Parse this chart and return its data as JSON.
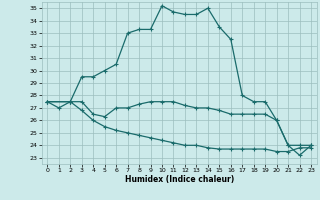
{
  "xlabel": "Humidex (Indice chaleur)",
  "bg_color": "#cceaea",
  "grid_color": "#9cbebe",
  "line_color": "#1a6b6b",
  "xlim": [
    -0.5,
    23.5
  ],
  "ylim": [
    22.5,
    35.5
  ],
  "yticks": [
    23,
    24,
    25,
    26,
    27,
    28,
    29,
    30,
    31,
    32,
    33,
    34,
    35
  ],
  "xticks": [
    0,
    1,
    2,
    3,
    4,
    5,
    6,
    7,
    8,
    9,
    10,
    11,
    12,
    13,
    14,
    15,
    16,
    17,
    18,
    19,
    20,
    21,
    22,
    23
  ],
  "line1_x": [
    0,
    1,
    2,
    3,
    4,
    5,
    6,
    7,
    8,
    9,
    10,
    11,
    12,
    13,
    14,
    15,
    16,
    17,
    18,
    19,
    20,
    21,
    22,
    23
  ],
  "line1_y": [
    27.5,
    27.0,
    27.5,
    29.5,
    29.5,
    30.0,
    30.5,
    33.0,
    33.3,
    33.3,
    35.2,
    34.7,
    34.5,
    34.5,
    35.0,
    33.5,
    32.5,
    28.0,
    27.5,
    27.5,
    26.0,
    24.0,
    23.2,
    24.0
  ],
  "line2_x": [
    0,
    2,
    3,
    4,
    5,
    6,
    7,
    8,
    9,
    10,
    11,
    12,
    13,
    14,
    15,
    16,
    17,
    18,
    19,
    20,
    21,
    22,
    23
  ],
  "line2_y": [
    27.5,
    27.5,
    27.5,
    26.5,
    26.3,
    27.0,
    27.0,
    27.3,
    27.5,
    27.5,
    27.5,
    27.2,
    27.0,
    27.0,
    26.8,
    26.5,
    26.5,
    26.5,
    26.5,
    26.0,
    24.0,
    24.0,
    24.0
  ],
  "line3_x": [
    0,
    2,
    3,
    4,
    5,
    6,
    7,
    8,
    9,
    10,
    11,
    12,
    13,
    14,
    15,
    16,
    17,
    18,
    19,
    20,
    21,
    22,
    23
  ],
  "line3_y": [
    27.5,
    27.5,
    26.8,
    26.0,
    25.5,
    25.2,
    25.0,
    24.8,
    24.6,
    24.4,
    24.2,
    24.0,
    24.0,
    23.8,
    23.7,
    23.7,
    23.7,
    23.7,
    23.7,
    23.5,
    23.5,
    23.8,
    23.8
  ]
}
